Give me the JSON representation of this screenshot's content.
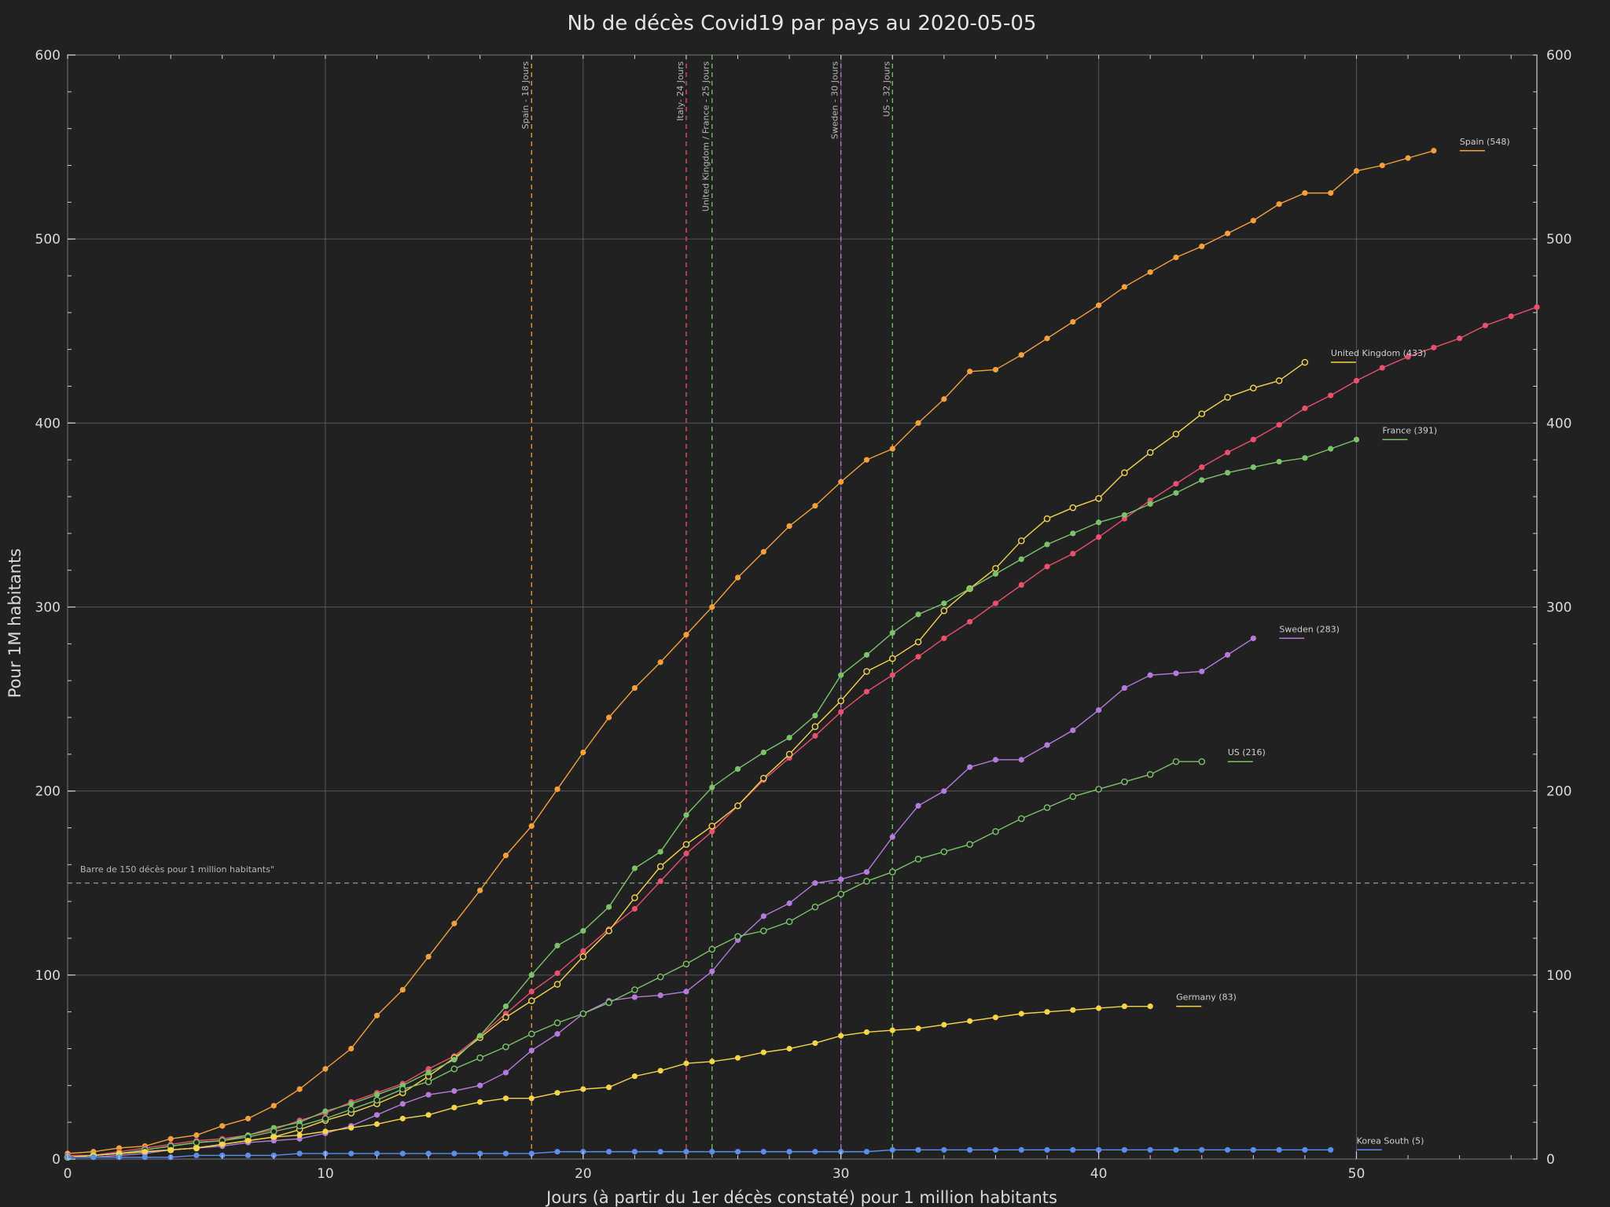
{
  "chart_data": {
    "type": "line",
    "title": "Nb de décès Covid19 par pays au 2020-05-05",
    "xlabel": "Jours (à partir du 1er décès constaté) pour 1 million habitants",
    "ylabel": "Pour 1M habitants",
    "xlim": [
      0,
      57
    ],
    "ylim": [
      0,
      600
    ],
    "x_ticks": [
      0,
      10,
      20,
      30,
      40,
      50
    ],
    "y_ticks": [
      0,
      100,
      200,
      300,
      400,
      500,
      600
    ],
    "grid": true,
    "background": "#212121",
    "threshold": {
      "y": 150,
      "label": "Barre de 150 décès pour 1 million habitants\""
    },
    "vlines": [
      {
        "x": 18,
        "label": "Spain - 18 Jours",
        "color": "#f5a03c"
      },
      {
        "x": 24,
        "label": "Italy- 24 Jours",
        "color": "#e8506e"
      },
      {
        "x": 25,
        "label": "United Kingdom / France - 25 Jours",
        "color": "#7cc26a"
      },
      {
        "x": 30,
        "label": "Sweden - 30 Jours",
        "color": "#b57bdc"
      },
      {
        "x": 32,
        "label": "US - 32 Jours",
        "color": "#7cc26a"
      }
    ],
    "series": [
      {
        "name": "Spain",
        "label": "Spain (548)",
        "color": "#f5a03c",
        "marker": "filled",
        "x": [
          0,
          1,
          2,
          3,
          4,
          5,
          6,
          7,
          8,
          9,
          10,
          11,
          12,
          13,
          14,
          15,
          16,
          17,
          18,
          19,
          20,
          21,
          22,
          23,
          24,
          25,
          26,
          27,
          28,
          29,
          30,
          31,
          32,
          33,
          34,
          35,
          36,
          37,
          38,
          39,
          40,
          41,
          42,
          43,
          44,
          45,
          46,
          47,
          48,
          49,
          50,
          51,
          52,
          53
        ],
        "y": [
          3,
          4,
          6,
          7,
          11,
          13,
          18,
          22,
          29,
          38,
          49,
          60,
          78,
          92,
          110,
          128,
          146,
          165,
          181,
          201,
          221,
          240,
          256,
          270,
          285,
          300,
          316,
          330,
          344,
          355,
          368,
          380,
          386,
          400,
          413,
          428,
          429,
          437,
          446,
          455,
          464,
          474,
          482,
          490,
          496,
          503,
          510,
          519,
          525,
          525,
          537,
          540,
          544,
          548
        ]
      },
      {
        "name": "Italy",
        "label": "",
        "color": "#e8506e",
        "marker": "filled",
        "x": [
          0,
          1,
          2,
          3,
          4,
          5,
          6,
          7,
          8,
          9,
          10,
          11,
          12,
          13,
          14,
          15,
          16,
          17,
          18,
          19,
          20,
          21,
          22,
          23,
          24,
          25,
          26,
          27,
          28,
          29,
          30,
          31,
          32,
          33,
          34,
          35,
          36,
          37,
          38,
          39,
          40,
          41,
          42,
          43,
          44,
          45,
          46,
          47,
          48,
          49,
          50,
          51,
          52,
          53,
          54,
          55,
          56,
          57
        ],
        "y": [
          2,
          2,
          4,
          6,
          8,
          10,
          11,
          13,
          16,
          21,
          25,
          31,
          36,
          41,
          49,
          56,
          67,
          79,
          91,
          101,
          113,
          125,
          136,
          151,
          166,
          178,
          192,
          206,
          218,
          230,
          243,
          254,
          263,
          273,
          283,
          292,
          302,
          312,
          322,
          329,
          338,
          348,
          358,
          367,
          376,
          384,
          391,
          399,
          408,
          415,
          423,
          430,
          436,
          441,
          446,
          453,
          458,
          463
        ]
      },
      {
        "name": "United Kingdom",
        "label": "United Kingdom (433)",
        "color": "#f5d44a",
        "marker": "hollow",
        "x": [
          0,
          1,
          2,
          3,
          4,
          5,
          6,
          7,
          8,
          9,
          10,
          11,
          12,
          13,
          14,
          15,
          16,
          17,
          18,
          19,
          20,
          21,
          22,
          23,
          24,
          25,
          26,
          27,
          28,
          29,
          30,
          31,
          32,
          33,
          34,
          35,
          36,
          37,
          38,
          39,
          40,
          41,
          42,
          43,
          44,
          45,
          46,
          47,
          48
        ],
        "y": [
          1,
          2,
          3,
          4,
          5,
          6,
          8,
          10,
          12,
          16,
          21,
          25,
          30,
          36,
          45,
          55,
          66,
          77,
          86,
          95,
          110,
          124,
          142,
          159,
          171,
          181,
          192,
          207,
          220,
          235,
          249,
          265,
          272,
          281,
          298,
          310,
          321,
          336,
          348,
          354,
          359,
          373,
          384,
          394,
          405,
          414,
          419,
          423,
          433
        ]
      },
      {
        "name": "France",
        "label": "France (391)",
        "color": "#7cc26a",
        "marker": "filled",
        "x": [
          0,
          1,
          2,
          3,
          4,
          5,
          6,
          7,
          8,
          9,
          10,
          11,
          12,
          13,
          14,
          15,
          16,
          17,
          18,
          19,
          20,
          21,
          22,
          23,
          24,
          25,
          26,
          27,
          28,
          29,
          30,
          31,
          32,
          33,
          34,
          35,
          36,
          37,
          38,
          39,
          40,
          41,
          42,
          43,
          44,
          45,
          46,
          47,
          48,
          49,
          50
        ],
        "y": [
          1,
          2,
          3,
          5,
          7,
          9,
          10,
          13,
          17,
          20,
          26,
          30,
          35,
          40,
          47,
          54,
          67,
          83,
          100,
          116,
          124,
          137,
          158,
          167,
          187,
          202,
          212,
          221,
          229,
          241,
          263,
          274,
          286,
          296,
          302,
          310,
          318,
          326,
          334,
          340,
          346,
          350,
          356,
          362,
          369,
          373,
          376,
          379,
          381,
          386,
          391
        ]
      },
      {
        "name": "Sweden",
        "label": "Sweden (283)",
        "color": "#b57bdc",
        "marker": "filled",
        "x": [
          0,
          1,
          2,
          3,
          4,
          5,
          6,
          7,
          8,
          9,
          10,
          11,
          12,
          13,
          14,
          15,
          16,
          17,
          18,
          19,
          20,
          21,
          22,
          23,
          24,
          25,
          26,
          27,
          28,
          29,
          30,
          31,
          32,
          33,
          34,
          35,
          36,
          37,
          38,
          39,
          40,
          41,
          42,
          43,
          44,
          45,
          46
        ],
        "y": [
          1,
          1,
          2,
          3,
          5,
          6,
          7,
          9,
          10,
          11,
          14,
          18,
          24,
          30,
          35,
          37,
          40,
          47,
          59,
          68,
          79,
          86,
          88,
          89,
          91,
          102,
          119,
          132,
          139,
          150,
          152,
          156,
          175,
          192,
          200,
          213,
          217,
          217,
          225,
          233,
          244,
          256,
          263,
          264,
          265,
          274,
          283
        ]
      },
      {
        "name": "US",
        "label": "US (216)",
        "color": "#7cc26a",
        "marker": "hollow",
        "x": [
          0,
          1,
          2,
          3,
          4,
          5,
          6,
          7,
          8,
          9,
          10,
          11,
          12,
          13,
          14,
          15,
          16,
          17,
          18,
          19,
          20,
          21,
          22,
          23,
          24,
          25,
          26,
          27,
          28,
          29,
          30,
          31,
          32,
          33,
          34,
          35,
          36,
          37,
          38,
          39,
          40,
          41,
          42,
          43,
          44
        ],
        "y": [
          1,
          2,
          3,
          5,
          7,
          9,
          10,
          12,
          15,
          18,
          22,
          27,
          32,
          38,
          42,
          49,
          55,
          61,
          68,
          74,
          79,
          85,
          92,
          99,
          106,
          114,
          121,
          124,
          129,
          137,
          144,
          151,
          156,
          163,
          167,
          171,
          178,
          185,
          191,
          197,
          201,
          205,
          209,
          216,
          216
        ]
      },
      {
        "name": "Germany",
        "label": "Germany (83)",
        "color": "#f5d44a",
        "marker": "filled",
        "x": [
          0,
          1,
          2,
          3,
          4,
          5,
          6,
          7,
          8,
          9,
          10,
          11,
          12,
          13,
          14,
          15,
          16,
          17,
          18,
          19,
          20,
          21,
          22,
          23,
          24,
          25,
          26,
          27,
          28,
          29,
          30,
          31,
          32,
          33,
          34,
          35,
          36,
          37,
          38,
          39,
          40,
          41,
          42
        ],
        "y": [
          1,
          2,
          3,
          4,
          5,
          6,
          8,
          10,
          12,
          13,
          15,
          17,
          19,
          22,
          24,
          28,
          31,
          33,
          33,
          36,
          38,
          39,
          45,
          48,
          52,
          53,
          55,
          58,
          60,
          63,
          67,
          69,
          70,
          71,
          73,
          75,
          77,
          79,
          80,
          81,
          82,
          83,
          83
        ]
      },
      {
        "name": "Korea South",
        "label": "Korea South (5)",
        "color": "#5b8def",
        "marker": "filled",
        "x": [
          0,
          1,
          2,
          3,
          4,
          5,
          6,
          7,
          8,
          9,
          10,
          11,
          12,
          13,
          14,
          15,
          16,
          17,
          18,
          19,
          20,
          21,
          22,
          23,
          24,
          25,
          26,
          27,
          28,
          29,
          30,
          31,
          32,
          33,
          34,
          35,
          36,
          37,
          38,
          39,
          40,
          41,
          42,
          43,
          44,
          45,
          46,
          47,
          48,
          49
        ],
        "y": [
          1,
          1,
          1,
          1,
          1,
          2,
          2,
          2,
          2,
          3,
          3,
          3,
          3,
          3,
          3,
          3,
          3,
          3,
          3,
          4,
          4,
          4,
          4,
          4,
          4,
          4,
          4,
          4,
          4,
          4,
          4,
          4,
          5,
          5,
          5,
          5,
          5,
          5,
          5,
          5,
          5,
          5,
          5,
          5,
          5,
          5,
          5,
          5,
          5,
          5
        ]
      }
    ]
  }
}
